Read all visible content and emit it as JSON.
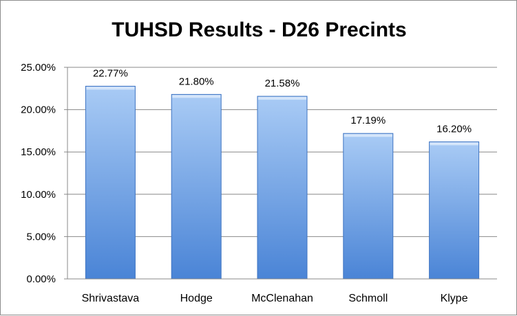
{
  "chart_data": {
    "type": "bar",
    "title": "TUHSD Results - D26 Precints",
    "xlabel": "",
    "ylabel": "",
    "categories": [
      "Shrivastava",
      "Hodge",
      "McClenahan",
      "Schmoll",
      "Klype"
    ],
    "values": [
      22.77,
      21.8,
      21.58,
      17.19,
      16.2
    ],
    "data_labels": [
      "22.77%",
      "21.80%",
      "21.58%",
      "17.19%",
      "16.20%"
    ],
    "ylim": [
      0,
      25
    ],
    "yticks": [
      0,
      5,
      10,
      15,
      20,
      25
    ],
    "ytick_labels": [
      "0.00%",
      "5.00%",
      "10.00%",
      "15.00%",
      "20.00%",
      "25.00%"
    ],
    "grid": true,
    "legend": "none",
    "colors": {
      "bar_light": "#a9cbf5",
      "bar_dark": "#4a84d6",
      "bar_edge": "#3f74c2",
      "grid": "#888888"
    }
  }
}
